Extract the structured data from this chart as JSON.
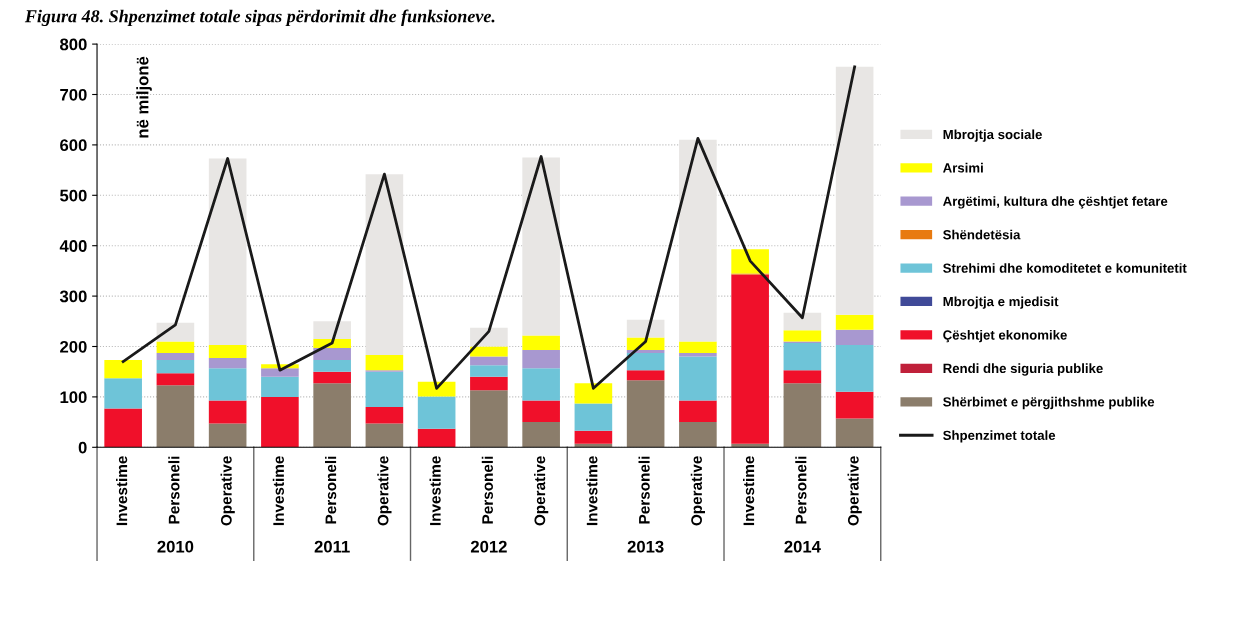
{
  "chart_data": {
    "type": "bar",
    "stacked": true,
    "title": "Figura 48. Shpenzimet totale sipas përdorimit dhe funksioneve.",
    "ylabel": "në miljonë",
    "categories": [
      "Investime",
      "Personeli",
      "Operative",
      "Investime",
      "Personeli",
      "Operative",
      "Investime",
      "Personeli",
      "Operative",
      "Investime",
      "Personeli",
      "Operative",
      "Investime",
      "Personeli",
      "Operative"
    ],
    "annotations": [
      "2010",
      "2011",
      "2012",
      "2013",
      "2014"
    ],
    "series": [
      {
        "name": "Shërbimet e përgjithshme publike",
        "color": "#8b7d6b",
        "values": [
          0,
          123,
          47,
          0,
          127,
          47,
          0,
          113,
          50,
          7,
          133,
          50,
          7,
          127,
          57
        ]
      },
      {
        "name": "Rendi dhe siguria publike",
        "color": "#c0203a",
        "values": [
          0,
          0,
          0,
          0,
          0,
          0,
          0,
          0,
          0,
          0,
          0,
          0,
          0,
          0,
          0
        ]
      },
      {
        "name": "Çështjet ekonomike",
        "color": "#f0102a",
        "values": [
          77,
          24,
          46,
          100,
          23,
          33,
          37,
          27,
          43,
          26,
          20,
          43,
          336,
          26,
          53
        ]
      },
      {
        "name": "Mbrojtja e mjedisit",
        "color": "#404a98",
        "values": [
          0,
          0,
          0,
          0,
          0,
          0,
          0,
          0,
          0,
          0,
          0,
          0,
          0,
          0,
          0
        ]
      },
      {
        "name": "Strehimi dhe komoditetet e komunitetit",
        "color": "#6ec4d8",
        "values": [
          60,
          26,
          64,
          40,
          23,
          70,
          64,
          23,
          64,
          54,
          34,
          87,
          0,
          54,
          93
        ]
      },
      {
        "name": "Shëndetësia",
        "color": "#e87a10",
        "values": [
          0,
          0,
          0,
          0,
          0,
          0,
          0,
          0,
          0,
          0,
          0,
          0,
          2,
          0,
          0
        ]
      },
      {
        "name": "Argëtimi, kultura dhe çështjet fetare",
        "color": "#a898d0",
        "values": [
          0,
          14,
          20,
          17,
          24,
          3,
          0,
          17,
          36,
          0,
          6,
          7,
          0,
          3,
          30
        ]
      },
      {
        "name": "Arsimi",
        "color": "#ffff00",
        "values": [
          36,
          23,
          26,
          8,
          18,
          30,
          29,
          20,
          29,
          40,
          25,
          23,
          48,
          22,
          30
        ]
      },
      {
        "name": "Mbrojtja sociale",
        "color": "#e8e6e4",
        "values": [
          0,
          37,
          370,
          0,
          35,
          359,
          0,
          37,
          353,
          0,
          35,
          400,
          0,
          35,
          492
        ]
      },
      {
        "name": "Shpenzimet totale",
        "type": "line",
        "color": "#1a1a1a",
        "values": [
          170,
          243,
          573,
          153,
          207,
          542,
          117,
          230,
          577,
          117,
          210,
          613,
          370,
          257,
          755
        ]
      }
    ],
    "ylim": [
      0,
      800
    ],
    "yticks": [
      0,
      100,
      200,
      300,
      400,
      500,
      600,
      700,
      800
    ],
    "grid": "y",
    "legend": "right",
    "marker": "none",
    "line_style": "solid"
  }
}
